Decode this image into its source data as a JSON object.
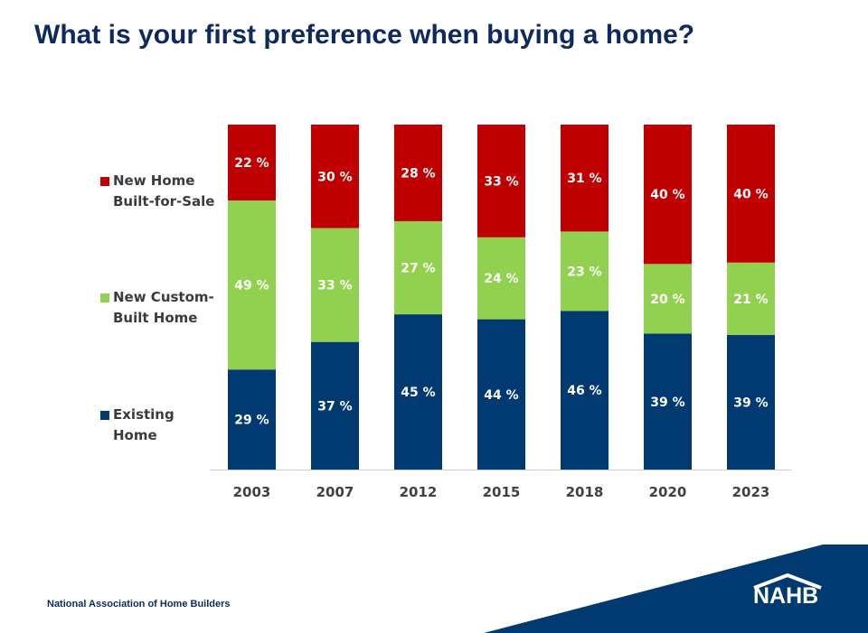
{
  "page": {
    "title": "What is your first preference when buying a home?",
    "footer": "National Association of Home Builders",
    "logo": "NAHB"
  },
  "colors": {
    "existing": "#003a70",
    "custom": "#92d050",
    "forsale": "#c00000",
    "navy": "#0e2a5c",
    "label_text": "#ffffff",
    "axis_text": "#404040"
  },
  "chart_data": {
    "type": "bar",
    "stacked": true,
    "title": "What is your first preference when buying a home?",
    "categories": [
      "2003",
      "2007",
      "2012",
      "2015",
      "2018",
      "2020",
      "2023"
    ],
    "ylim": [
      0,
      100
    ],
    "grid": false,
    "legend_position": "left",
    "series": [
      {
        "name": "Existing Home",
        "label_lines": [
          "Existing",
          "Home"
        ],
        "values": [
          29,
          37,
          45,
          44,
          46,
          39,
          39
        ]
      },
      {
        "name": "New Custom-Built Home",
        "label_lines": [
          "New Custom-",
          "Built Home"
        ],
        "values": [
          49,
          33,
          27,
          24,
          23,
          20,
          21
        ]
      },
      {
        "name": "New Home Built-for-Sale",
        "label_lines": [
          "New Home",
          "Built-for-Sale"
        ],
        "values": [
          22,
          30,
          28,
          33,
          31,
          40,
          40
        ]
      }
    ],
    "value_suffix": " %"
  }
}
